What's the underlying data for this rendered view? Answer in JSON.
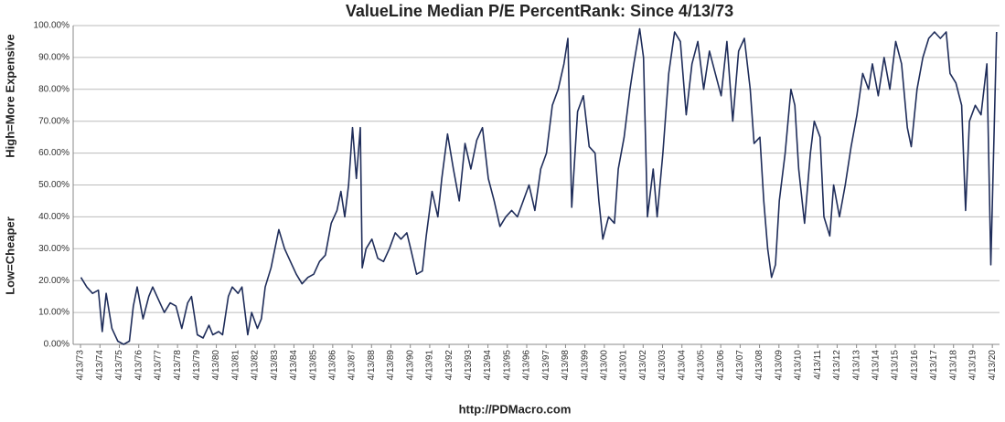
{
  "chart_data": {
    "type": "line",
    "title": "ValueLine Median P/E PercentRank: Since 4/13/73",
    "xlabel": "http://PDMacro.com",
    "ylabel_high": "High=More Expensive",
    "ylabel_low": "Low=Cheaper",
    "grid": true,
    "ylim": [
      0,
      100
    ],
    "yticks": [
      {
        "value": 0,
        "label": "0.00%"
      },
      {
        "value": 10,
        "label": "10.00%"
      },
      {
        "value": 20,
        "label": "20.00%"
      },
      {
        "value": 30,
        "label": "30.00%"
      },
      {
        "value": 40,
        "label": "40.00%"
      },
      {
        "value": 50,
        "label": "50.00%"
      },
      {
        "value": 60,
        "label": "60.00%"
      },
      {
        "value": 70,
        "label": "70.00%"
      },
      {
        "value": 80,
        "label": "80.00%"
      },
      {
        "value": 90,
        "label": "90.00%"
      },
      {
        "value": 100,
        "label": "100.00%"
      }
    ],
    "xlim": [
      1972.9,
      2020.65
    ],
    "xticks": [
      {
        "value": 1973.28,
        "label": "4/13/73"
      },
      {
        "value": 1974.28,
        "label": "4/13/74"
      },
      {
        "value": 1975.28,
        "label": "4/13/75"
      },
      {
        "value": 1976.28,
        "label": "4/13/76"
      },
      {
        "value": 1977.28,
        "label": "4/13/77"
      },
      {
        "value": 1978.28,
        "label": "4/13/78"
      },
      {
        "value": 1979.28,
        "label": "4/13/79"
      },
      {
        "value": 1980.28,
        "label": "4/13/80"
      },
      {
        "value": 1981.28,
        "label": "4/13/81"
      },
      {
        "value": 1982.28,
        "label": "4/13/82"
      },
      {
        "value": 1983.28,
        "label": "4/13/83"
      },
      {
        "value": 1984.28,
        "label": "4/13/84"
      },
      {
        "value": 1985.28,
        "label": "4/13/85"
      },
      {
        "value": 1986.28,
        "label": "4/13/86"
      },
      {
        "value": 1987.28,
        "label": "4/13/87"
      },
      {
        "value": 1988.28,
        "label": "4/13/88"
      },
      {
        "value": 1989.28,
        "label": "4/13/89"
      },
      {
        "value": 1990.28,
        "label": "4/13/90"
      },
      {
        "value": 1991.28,
        "label": "4/13/91"
      },
      {
        "value": 1992.28,
        "label": "4/13/92"
      },
      {
        "value": 1993.28,
        "label": "4/13/93"
      },
      {
        "value": 1994.28,
        "label": "4/13/94"
      },
      {
        "value": 1995.28,
        "label": "4/13/95"
      },
      {
        "value": 1996.28,
        "label": "4/13/96"
      },
      {
        "value": 1997.28,
        "label": "4/13/97"
      },
      {
        "value": 1998.28,
        "label": "4/13/98"
      },
      {
        "value": 1999.28,
        "label": "4/13/99"
      },
      {
        "value": 2000.28,
        "label": "4/13/00"
      },
      {
        "value": 2001.28,
        "label": "4/13/01"
      },
      {
        "value": 2002.28,
        "label": "4/13/02"
      },
      {
        "value": 2003.28,
        "label": "4/13/03"
      },
      {
        "value": 2004.28,
        "label": "4/13/04"
      },
      {
        "value": 2005.28,
        "label": "4/13/05"
      },
      {
        "value": 2006.28,
        "label": "4/13/06"
      },
      {
        "value": 2007.28,
        "label": "4/13/07"
      },
      {
        "value": 2008.28,
        "label": "4/13/08"
      },
      {
        "value": 2009.28,
        "label": "4/13/09"
      },
      {
        "value": 2010.28,
        "label": "4/13/10"
      },
      {
        "value": 2011.28,
        "label": "4/13/11"
      },
      {
        "value": 2012.28,
        "label": "4/13/12"
      },
      {
        "value": 2013.28,
        "label": "4/13/13"
      },
      {
        "value": 2014.28,
        "label": "4/13/14"
      },
      {
        "value": 2015.28,
        "label": "4/13/15"
      },
      {
        "value": 2016.28,
        "label": "4/13/16"
      },
      {
        "value": 2017.28,
        "label": "4/13/17"
      },
      {
        "value": 2018.28,
        "label": "4/13/18"
      },
      {
        "value": 2019.28,
        "label": "4/13/19"
      },
      {
        "value": 2020.28,
        "label": "4/13/20"
      }
    ],
    "color": "#1f2d5a",
    "x": [
      1973.3,
      1973.6,
      1973.9,
      1974.2,
      1974.4,
      1974.6,
      1974.9,
      1975.2,
      1975.5,
      1975.8,
      1976.0,
      1976.2,
      1976.5,
      1976.8,
      1977.0,
      1977.3,
      1977.6,
      1977.9,
      1978.2,
      1978.5,
      1978.8,
      1979.0,
      1979.3,
      1979.6,
      1979.9,
      1980.1,
      1980.4,
      1980.6,
      1980.9,
      1981.1,
      1981.4,
      1981.6,
      1981.9,
      1982.1,
      1982.4,
      1982.6,
      1982.8,
      1983.1,
      1983.3,
      1983.5,
      1983.8,
      1984.1,
      1984.4,
      1984.7,
      1985.0,
      1985.3,
      1985.6,
      1985.9,
      1986.2,
      1986.5,
      1986.7,
      1986.9,
      1987.1,
      1987.3,
      1987.5,
      1987.7,
      1987.8,
      1988.0,
      1988.3,
      1988.6,
      1988.9,
      1989.2,
      1989.5,
      1989.8,
      1990.1,
      1990.3,
      1990.6,
      1990.9,
      1991.1,
      1991.4,
      1991.7,
      1991.9,
      1992.2,
      1992.5,
      1992.8,
      1993.1,
      1993.4,
      1993.7,
      1994.0,
      1994.3,
      1994.6,
      1994.9,
      1995.2,
      1995.5,
      1995.8,
      1996.1,
      1996.4,
      1996.7,
      1997.0,
      1997.3,
      1997.6,
      1997.9,
      1998.2,
      1998.4,
      1998.6,
      1998.9,
      1999.2,
      1999.5,
      1999.8,
      2000.0,
      2000.2,
      2000.5,
      2000.8,
      2001.0,
      2001.3,
      2001.6,
      2001.8,
      2002.1,
      2002.3,
      2002.5,
      2002.8,
      2003.0,
      2003.3,
      2003.6,
      2003.9,
      2004.2,
      2004.5,
      2004.8,
      2005.1,
      2005.4,
      2005.7,
      2006.0,
      2006.3,
      2006.6,
      2006.9,
      2007.2,
      2007.5,
      2007.8,
      2008.0,
      2008.3,
      2008.5,
      2008.7,
      2008.9,
      2009.1,
      2009.3,
      2009.6,
      2009.9,
      2010.1,
      2010.3,
      2010.6,
      2010.9,
      2011.1,
      2011.4,
      2011.6,
      2011.9,
      2012.1,
      2012.4,
      2012.7,
      2013.0,
      2013.3,
      2013.6,
      2013.9,
      2014.1,
      2014.4,
      2014.7,
      2015.0,
      2015.3,
      2015.6,
      2015.9,
      2016.1,
      2016.4,
      2016.7,
      2017.0,
      2017.3,
      2017.6,
      2017.9,
      2018.1,
      2018.4,
      2018.7,
      2018.9,
      2019.1,
      2019.4,
      2019.7,
      2020.0,
      2020.2,
      2020.5
    ],
    "values": [
      21,
      18,
      16,
      17,
      4,
      16,
      5,
      1,
      0,
      1,
      12,
      18,
      8,
      15,
      18,
      14,
      10,
      13,
      12,
      5,
      13,
      15,
      3,
      2,
      6,
      3,
      4,
      3,
      15,
      18,
      16,
      18,
      3,
      10,
      5,
      8,
      18,
      24,
      30,
      36,
      30,
      26,
      22,
      19,
      21,
      22,
      26,
      28,
      38,
      42,
      48,
      40,
      50,
      68,
      52,
      68,
      24,
      30,
      33,
      27,
      26,
      30,
      35,
      33,
      35,
      30,
      22,
      23,
      34,
      48,
      40,
      52,
      66,
      55,
      45,
      63,
      55,
      64,
      68,
      52,
      45,
      37,
      40,
      42,
      40,
      45,
      50,
      42,
      55,
      60,
      75,
      80,
      88,
      96,
      43,
      73,
      78,
      62,
      60,
      45,
      33,
      40,
      38,
      55,
      65,
      80,
      88,
      99,
      90,
      40,
      55,
      40,
      60,
      85,
      98,
      95,
      72,
      88,
      95,
      80,
      92,
      85,
      78,
      95,
      70,
      92,
      96,
      80,
      63,
      65,
      45,
      30,
      21,
      25,
      45,
      60,
      80,
      75,
      55,
      38,
      60,
      70,
      65,
      40,
      34,
      50,
      40,
      50,
      62,
      72,
      85,
      80,
      88,
      78,
      90,
      80,
      95,
      88,
      68,
      62,
      80,
      90,
      96,
      98,
      96,
      98,
      85,
      82,
      75,
      42,
      70,
      75,
      72,
      88,
      25,
      98
    ]
  }
}
